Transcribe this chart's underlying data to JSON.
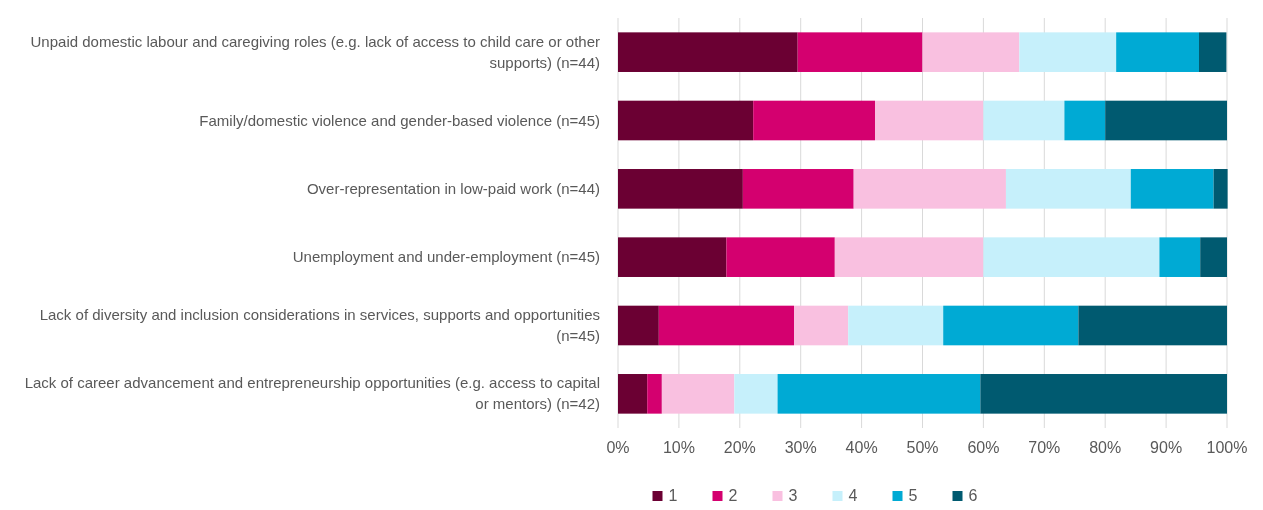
{
  "chart_data": {
    "type": "bar",
    "orientation": "horizontal",
    "stacked": true,
    "categories": [
      "Unpaid domestic labour and caregiving roles (e.g. lack of access to child care or other supports) (n=44)",
      "Family/domestic violence and gender-based violence (n=45)",
      "Over-representation in low-paid work (n=44)",
      "Unemployment and under-employment (n=45)",
      "Lack of diversity and inclusion considerations in services, supports and opportunities (n=45)",
      "Lack of career advancement and entrepreneurship opportunities (e.g. access to capital or mentors) (n=42)"
    ],
    "series": [
      {
        "name": "1",
        "color": "#6b0033",
        "values": [
          29.5,
          22.2,
          20.5,
          17.8,
          6.7,
          4.8
        ]
      },
      {
        "name": "2",
        "color": "#d4006f",
        "values": [
          20.5,
          20.0,
          18.2,
          17.8,
          22.2,
          2.4
        ]
      },
      {
        "name": "3",
        "color": "#f9c0e0",
        "values": [
          15.9,
          17.8,
          25.0,
          24.4,
          8.9,
          11.9
        ]
      },
      {
        "name": "4",
        "color": "#c6f0fb",
        "values": [
          15.9,
          13.3,
          20.5,
          28.9,
          15.6,
          7.1
        ]
      },
      {
        "name": "5",
        "color": "#00aad4",
        "values": [
          13.6,
          6.7,
          13.6,
          6.7,
          22.2,
          33.3
        ]
      },
      {
        "name": "6",
        "color": "#005a70",
        "values": [
          4.5,
          20.0,
          2.3,
          4.4,
          24.4,
          40.5
        ]
      }
    ],
    "xlim": [
      0,
      100
    ],
    "xticks": [
      {
        "value": 0,
        "label": "0%"
      },
      {
        "value": 10,
        "label": "10%"
      },
      {
        "value": 20,
        "label": "20%"
      },
      {
        "value": 30,
        "label": "30%"
      },
      {
        "value": 40,
        "label": "40%"
      },
      {
        "value": 50,
        "label": "50%"
      },
      {
        "value": 60,
        "label": "60%"
      },
      {
        "value": 70,
        "label": "70%"
      },
      {
        "value": 80,
        "label": "80%"
      },
      {
        "value": 90,
        "label": "90%"
      },
      {
        "value": 100,
        "label": "100%"
      }
    ],
    "grid": "x",
    "legend": "bottom"
  }
}
